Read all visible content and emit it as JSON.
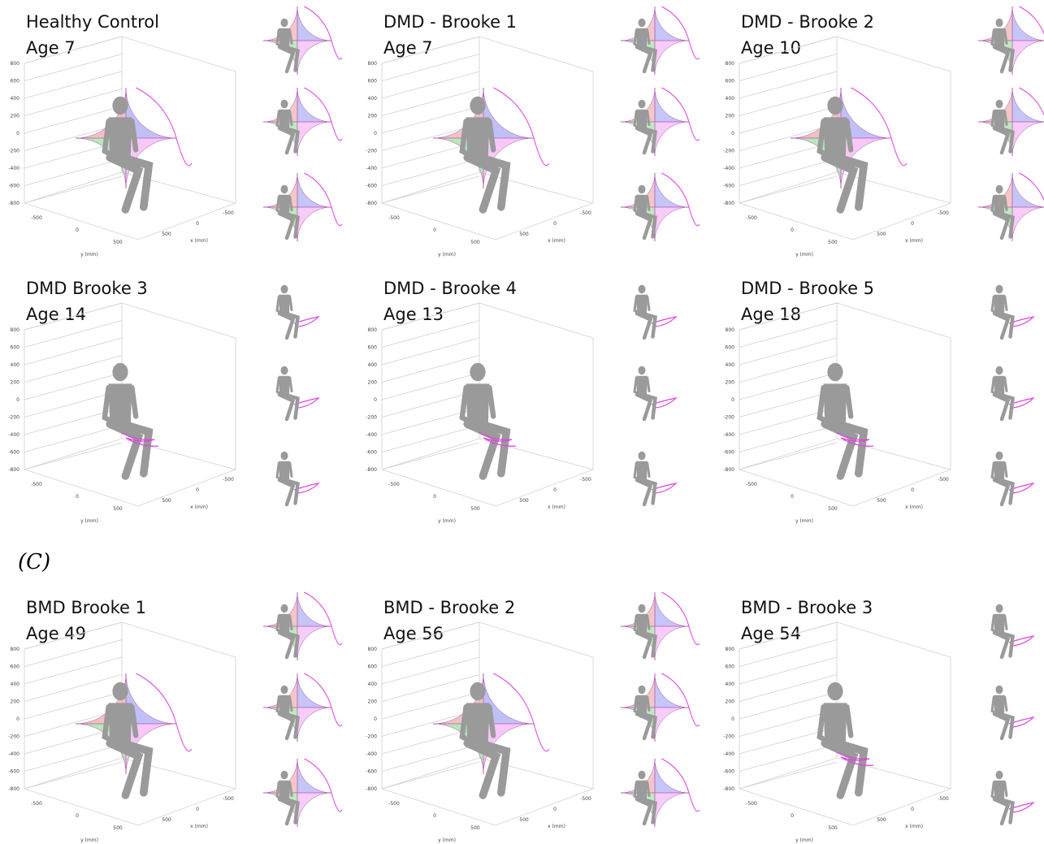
{
  "figure_label": "(C)",
  "panels": [
    {
      "title": "Healthy Control",
      "age": "Age 7"
    },
    {
      "title": "DMD - Brooke 1",
      "age": "Age 7"
    },
    {
      "title": "DMD - Brooke 2",
      "age": "Age 10"
    },
    {
      "title": "DMD Brooke 3",
      "age": "Age 14"
    },
    {
      "title": "DMD - Brooke 4",
      "age": "Age 13"
    },
    {
      "title": "DMD - Brooke 5",
      "age": "Age 18"
    },
    {
      "title": "BMD Brooke 1",
      "age": "Age 49"
    },
    {
      "title": "BMD - Brooke 2",
      "age": "Age 56"
    },
    {
      "title": "BMD - Brooke 3",
      "age": "Age 54"
    }
  ],
  "axes": {
    "z_ticks": [
      800,
      600,
      400,
      200,
      0,
      -200,
      -400,
      -600,
      -800
    ],
    "y_ticks": [
      -500,
      0,
      500
    ],
    "x_ticks": [
      500,
      0,
      -500
    ],
    "y_label": "y (mm)",
    "x_label": "x (mm)"
  }
}
